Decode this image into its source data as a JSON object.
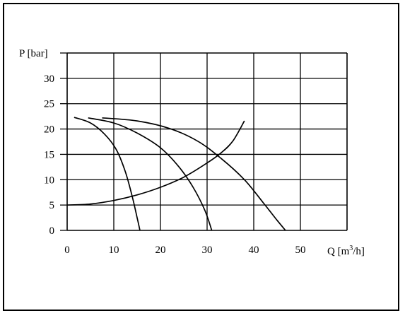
{
  "chart_data": {
    "type": "line",
    "ylabel": "P [bar]",
    "xlabel_prefix": "Q [m",
    "xlabel_sup": "3",
    "xlabel_suffix": "/h]",
    "xlim": [
      0,
      60
    ],
    "ylim": [
      0,
      35
    ],
    "x_ticks": [
      0,
      10,
      20,
      30,
      40,
      50
    ],
    "y_ticks": [
      0,
      5,
      10,
      15,
      20,
      25,
      30
    ],
    "grid": true,
    "series": [
      {
        "points": [
          [
            1.5,
            22.3
          ],
          [
            5,
            21.2
          ],
          [
            8,
            19
          ],
          [
            10.5,
            16
          ],
          [
            12.5,
            11.5
          ],
          [
            14,
            6.5
          ],
          [
            15,
            2.5
          ],
          [
            15.6,
            0
          ]
        ]
      },
      {
        "points": [
          [
            4.5,
            22.2
          ],
          [
            10,
            21.2
          ],
          [
            15,
            19.2
          ],
          [
            20,
            16.3
          ],
          [
            24,
            12.5
          ],
          [
            27,
            8.5
          ],
          [
            29.5,
            4
          ],
          [
            31,
            0
          ]
        ]
      },
      {
        "points": [
          [
            7.5,
            22.2
          ],
          [
            15,
            21.6
          ],
          [
            22,
            20.1
          ],
          [
            28,
            17.6
          ],
          [
            33,
            14.2
          ],
          [
            38,
            10
          ],
          [
            42,
            5.5
          ],
          [
            45,
            2
          ],
          [
            46.8,
            0
          ]
        ]
      },
      {
        "points": [
          [
            0,
            5
          ],
          [
            5,
            5.2
          ],
          [
            10,
            5.9
          ],
          [
            15,
            7
          ],
          [
            20,
            8.5
          ],
          [
            25,
            10.5
          ],
          [
            30,
            13.3
          ],
          [
            33,
            15.3
          ],
          [
            35.5,
            17.6
          ],
          [
            38,
            21.6
          ]
        ]
      }
    ]
  }
}
